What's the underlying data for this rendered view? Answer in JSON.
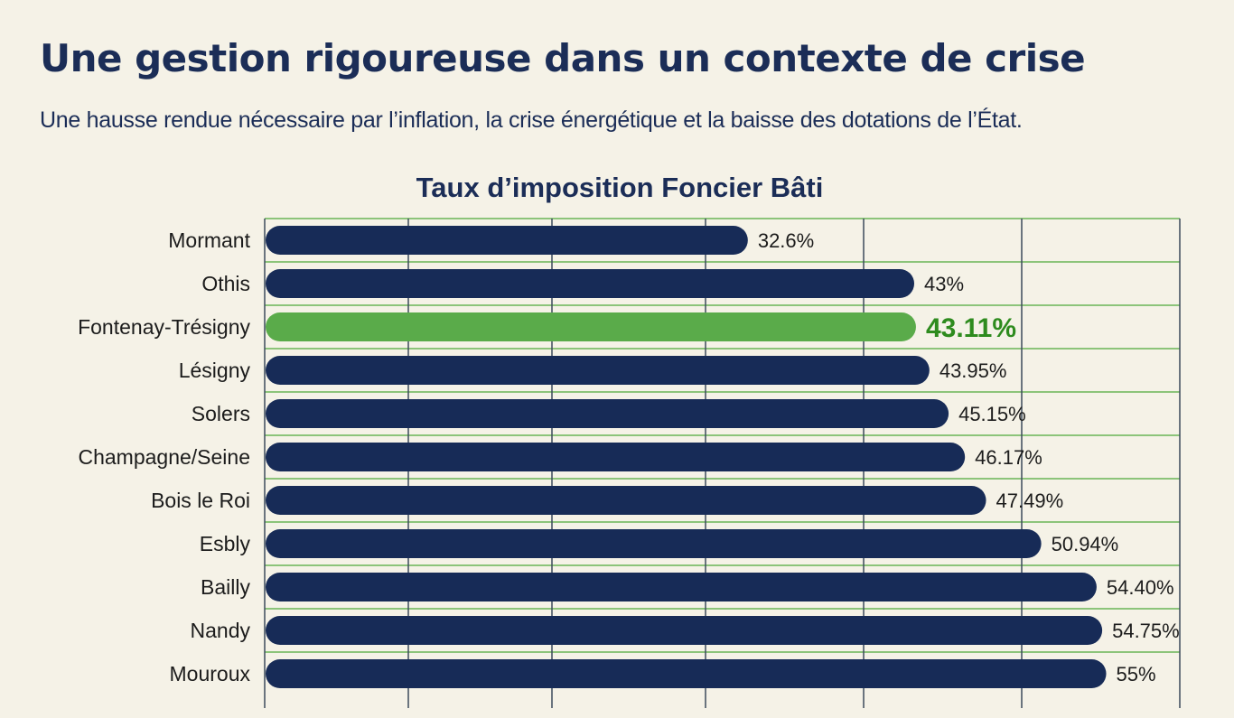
{
  "header": {
    "title": "Une gestion rigoureuse dans un contexte de crise",
    "subtitle": "Une hausse rendue nécessaire par l’inflation, la crise énergétique et la baisse des dotations de l’État."
  },
  "colors": {
    "background": "#f5f2e7",
    "bar": "#172b57",
    "highlight_bar": "#5aab4a",
    "highlight_text": "#2e8b1e",
    "grid_vertical": "#3c4a5c",
    "grid_horizontal": "#8cc47a",
    "text_dark": "#1b2d57"
  },
  "chart_data": {
    "type": "bar",
    "orientation": "horizontal",
    "title": "Taux d’imposition Foncier Bâti",
    "xlabel": "",
    "ylabel": "",
    "xlim": [
      2.4,
      59.6
    ],
    "grid": true,
    "legend": "none",
    "categories": [
      "Mormant",
      "Othis",
      "Fontenay-Trésigny",
      "Lésigny",
      "Solers",
      "Champagne/Seine",
      "Bois le Roi",
      "Esbly",
      "Bailly",
      "Nandy",
      "Mouroux"
    ],
    "values": [
      32.6,
      43,
      43.11,
      43.95,
      45.15,
      46.17,
      47.49,
      50.94,
      54.4,
      54.75,
      55
    ],
    "value_labels": [
      "32.6%",
      "43%",
      "43.11%",
      "43.95%",
      "45.15%",
      "46.17%",
      "47.49%",
      "50.94%",
      "54.40%",
      "54.75%",
      "55%"
    ],
    "highlight": "Fontenay-Trésigny"
  }
}
